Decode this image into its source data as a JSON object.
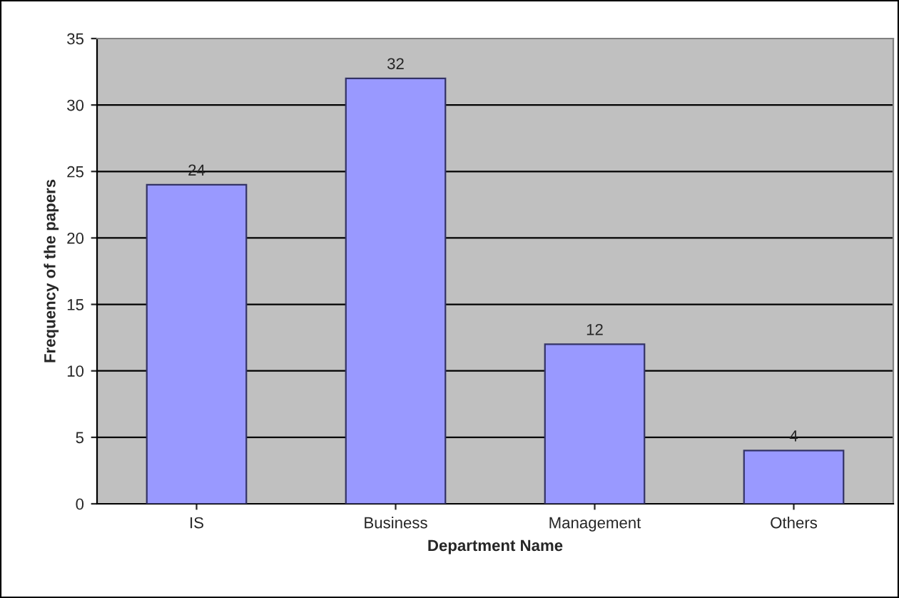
{
  "chart_data": {
    "type": "bar",
    "xlabel": "Department Name",
    "ylabel": "Frequency of the papers",
    "categories": [
      "IS",
      "Business",
      "Management",
      "Others"
    ],
    "values": [
      24,
      32,
      12,
      4
    ],
    "color": "#9999ff",
    "ylim": [
      0,
      35
    ],
    "yticks": [
      0,
      5,
      10,
      15,
      20,
      25,
      30,
      35
    ],
    "grid": "y",
    "data_labels": true
  }
}
